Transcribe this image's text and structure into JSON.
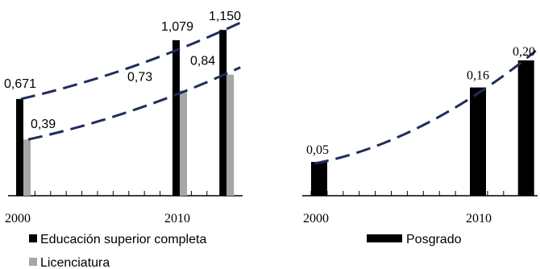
{
  "colors": {
    "bar_dark": "#000000",
    "bar_light": "#a6a6a6",
    "trend": "#1f2d5c",
    "axis": "#000000"
  },
  "chart_data": [
    {
      "type": "bar",
      "x_ticks": [
        "2000",
        "2010"
      ],
      "series": [
        {
          "name": "Educación superior completa",
          "color": "#000000",
          "points": [
            {
              "x": 2000,
              "y": 0.671,
              "label": "0,671"
            },
            {
              "x": 2010,
              "y": 1.079,
              "label": "1,079"
            },
            {
              "x": 2013,
              "y": 1.15,
              "label": "1,150"
            }
          ]
        },
        {
          "name": "Licenciatura",
          "color": "#a6a6a6",
          "points": [
            {
              "x": 2000,
              "y": 0.39,
              "label": "0,39"
            },
            {
              "x": 2010,
              "y": 0.73,
              "label": "0,73"
            },
            {
              "x": 2013,
              "y": 0.84,
              "label": "0,84"
            }
          ]
        }
      ],
      "trend_lines": "dashed",
      "xlim": [
        2000,
        2013
      ]
    },
    {
      "type": "bar",
      "x_ticks": [
        "2000",
        "2010"
      ],
      "series": [
        {
          "name": "Posgrado",
          "color": "#000000",
          "points": [
            {
              "x": 2000,
              "y": 0.05,
              "label": "0,05"
            },
            {
              "x": 2010,
              "y": 0.16,
              "label": "0,16"
            },
            {
              "x": 2013,
              "y": 0.2,
              "label": "0,20"
            }
          ]
        }
      ],
      "trend_lines": "dashed",
      "xlim": [
        2000,
        2013
      ]
    }
  ]
}
